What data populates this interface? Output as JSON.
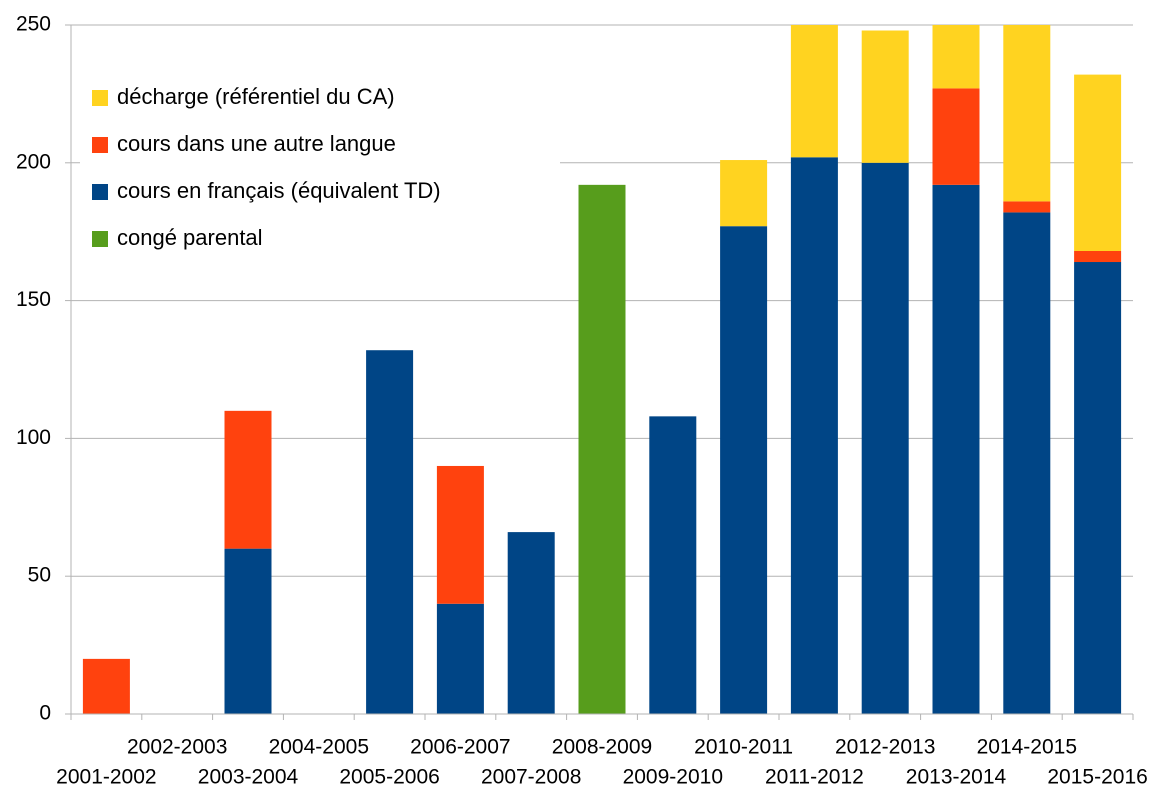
{
  "chart_data": {
    "type": "stacked_bar",
    "categories": [
      "2001-2002",
      "2002-2003",
      "2003-2004",
      "2004-2005",
      "2005-2006",
      "2006-2007",
      "2007-2008",
      "2008-2009",
      "2009-2010",
      "2010-2011",
      "2011-2012",
      "2012-2013",
      "2013-2014",
      "2014-2015",
      "2015-2016"
    ],
    "series": [
      {
        "name": "congé parental",
        "color": "#579d1c",
        "values": [
          null,
          null,
          null,
          null,
          null,
          null,
          null,
          192,
          null,
          null,
          null,
          null,
          null,
          null,
          null
        ]
      },
      {
        "name": "cours en français (équivalent TD)",
        "color": "#004586",
        "values": [
          null,
          null,
          60,
          null,
          132,
          40,
          66,
          null,
          108,
          177,
          202,
          200,
          192,
          182,
          164
        ]
      },
      {
        "name": "cours dans une autre langue",
        "color": "#ff420e",
        "values": [
          20,
          null,
          50,
          null,
          null,
          50,
          null,
          null,
          null,
          null,
          null,
          null,
          35,
          4,
          4
        ]
      },
      {
        "name": "décharge (référentiel du CA)",
        "color": "#ffd320",
        "values": [
          null,
          null,
          null,
          null,
          null,
          null,
          null,
          null,
          null,
          24,
          52,
          48,
          25,
          70,
          64
        ]
      }
    ],
    "ylim": [
      0,
      250
    ],
    "yticks": [
      0,
      50,
      100,
      150,
      200,
      250
    ],
    "grid": true,
    "legend": "upper left"
  }
}
